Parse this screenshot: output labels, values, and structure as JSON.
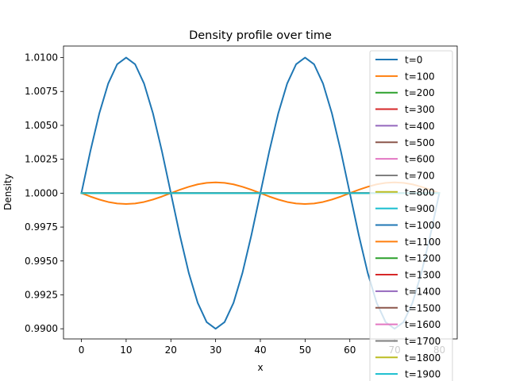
{
  "chart_data": {
    "type": "line",
    "title": "Density profile over time",
    "xlabel": "x",
    "ylabel": "Density",
    "xlim": [
      -4,
      84
    ],
    "ylim": [
      0.98925,
      1.01085
    ],
    "x_ticks": [
      0,
      10,
      20,
      30,
      40,
      50,
      60,
      70,
      80
    ],
    "x_tick_labels": [
      "0",
      "10",
      "20",
      "30",
      "40",
      "50",
      "60",
      "70",
      "80"
    ],
    "y_ticks": [
      0.99,
      0.9925,
      0.995,
      0.9975,
      1.0,
      1.0025,
      1.005,
      1.0075,
      1.01
    ],
    "y_tick_labels": [
      "0.9900",
      "0.9925",
      "0.9950",
      "0.9975",
      "1.0000",
      "1.0025",
      "1.0050",
      "1.0075",
      "1.0100"
    ],
    "x": [
      0,
      2,
      4,
      6,
      8,
      10,
      12,
      14,
      16,
      18,
      20,
      22,
      24,
      26,
      28,
      30,
      32,
      34,
      36,
      38,
      40,
      42,
      44,
      46,
      48,
      50,
      52,
      54,
      56,
      58,
      60,
      62,
      64,
      66,
      68,
      70,
      72,
      74,
      76,
      78,
      80
    ],
    "grid": false,
    "legend_position": "top-right",
    "series": [
      {
        "name": "t=0",
        "color": "#1f77b4",
        "values": [
          1.0,
          1.00309,
          1.00588,
          1.00809,
          1.00951,
          1.01,
          1.00951,
          1.00809,
          1.00588,
          1.00309,
          1.0,
          0.99691,
          0.99412,
          0.99191,
          0.99049,
          0.99,
          0.99049,
          0.99191,
          0.99412,
          0.99691,
          1.0,
          1.00309,
          1.00588,
          1.00809,
          1.00951,
          1.01,
          1.00951,
          1.00809,
          1.00588,
          1.00309,
          1.0,
          0.99691,
          0.99412,
          0.99191,
          0.99049,
          0.99,
          0.99049,
          0.99191,
          0.99412,
          0.99691,
          1.0
        ]
      },
      {
        "name": "t=100",
        "color": "#ff7f0e",
        "values": [
          1.0,
          0.99975,
          0.99953,
          0.99935,
          0.99924,
          0.9992,
          0.99924,
          0.99935,
          0.99953,
          0.99975,
          1.0,
          1.00025,
          1.00047,
          1.00065,
          1.00076,
          1.0008,
          1.00076,
          1.00065,
          1.00047,
          1.00025,
          1.0,
          0.99975,
          0.99953,
          0.99935,
          0.99924,
          0.9992,
          0.99924,
          0.99935,
          0.99953,
          0.99975,
          1.0,
          1.00025,
          1.00047,
          1.00065,
          1.00076,
          1.0008,
          1.00076,
          1.00065,
          1.00047,
          1.00025,
          1.0
        ]
      },
      {
        "name": "t=200",
        "color": "#2ca02c",
        "values": [
          1.0,
          1.0,
          1.0,
          1.00001,
          1.00001,
          1.00001,
          1.00001,
          1.00001,
          1.0,
          1.0,
          1.0,
          1.0,
          1.0,
          0.99999,
          0.99999,
          0.99999,
          0.99999,
          0.99999,
          1.0,
          1.0,
          1.0,
          1.0,
          1.0,
          1.00001,
          1.00001,
          1.00001,
          1.00001,
          1.00001,
          1.0,
          1.0,
          1.0,
          1.0,
          1.0,
          0.99999,
          0.99999,
          0.99999,
          0.99999,
          0.99999,
          1.0,
          1.0,
          1.0
        ]
      },
      {
        "name": "t=300",
        "color": "#d62728",
        "values": [
          1.0,
          1.0,
          1.0,
          1.0,
          1.0,
          1.0,
          1.0,
          1.0,
          1.0,
          1.0,
          1.0,
          1.0,
          1.0,
          1.0,
          1.0,
          1.0,
          1.0,
          1.0,
          1.0,
          1.0,
          1.0,
          1.0,
          1.0,
          1.0,
          1.0,
          1.0,
          1.0,
          1.0,
          1.0,
          1.0,
          1.0,
          1.0,
          1.0,
          1.0,
          1.0,
          1.0,
          1.0,
          1.0,
          1.0,
          1.0,
          1.0
        ]
      },
      {
        "name": "t=400",
        "color": "#9467bd",
        "values": [
          1.0,
          1.0,
          1.0,
          1.0,
          1.0,
          1.0,
          1.0,
          1.0,
          1.0,
          1.0,
          1.0,
          1.0,
          1.0,
          1.0,
          1.0,
          1.0,
          1.0,
          1.0,
          1.0,
          1.0,
          1.0,
          1.0,
          1.0,
          1.0,
          1.0,
          1.0,
          1.0,
          1.0,
          1.0,
          1.0,
          1.0,
          1.0,
          1.0,
          1.0,
          1.0,
          1.0,
          1.0,
          1.0,
          1.0,
          1.0,
          1.0
        ]
      },
      {
        "name": "t=500",
        "color": "#8c564b",
        "values": [
          1.0,
          1.0,
          1.0,
          1.0,
          1.0,
          1.0,
          1.0,
          1.0,
          1.0,
          1.0,
          1.0,
          1.0,
          1.0,
          1.0,
          1.0,
          1.0,
          1.0,
          1.0,
          1.0,
          1.0,
          1.0,
          1.0,
          1.0,
          1.0,
          1.0,
          1.0,
          1.0,
          1.0,
          1.0,
          1.0,
          1.0,
          1.0,
          1.0,
          1.0,
          1.0,
          1.0,
          1.0,
          1.0,
          1.0,
          1.0,
          1.0
        ]
      },
      {
        "name": "t=600",
        "color": "#e377c2",
        "values": [
          1.0,
          1.0,
          1.0,
          1.0,
          1.0,
          1.0,
          1.0,
          1.0,
          1.0,
          1.0,
          1.0,
          1.0,
          1.0,
          1.0,
          1.0,
          1.0,
          1.0,
          1.0,
          1.0,
          1.0,
          1.0,
          1.0,
          1.0,
          1.0,
          1.0,
          1.0,
          1.0,
          1.0,
          1.0,
          1.0,
          1.0,
          1.0,
          1.0,
          1.0,
          1.0,
          1.0,
          1.0,
          1.0,
          1.0,
          1.0,
          1.0
        ]
      },
      {
        "name": "t=700",
        "color": "#7f7f7f",
        "values": [
          1.0,
          1.0,
          1.0,
          1.0,
          1.0,
          1.0,
          1.0,
          1.0,
          1.0,
          1.0,
          1.0,
          1.0,
          1.0,
          1.0,
          1.0,
          1.0,
          1.0,
          1.0,
          1.0,
          1.0,
          1.0,
          1.0,
          1.0,
          1.0,
          1.0,
          1.0,
          1.0,
          1.0,
          1.0,
          1.0,
          1.0,
          1.0,
          1.0,
          1.0,
          1.0,
          1.0,
          1.0,
          1.0,
          1.0,
          1.0,
          1.0
        ]
      },
      {
        "name": "t=800",
        "color": "#bcbd22",
        "values": [
          1.0,
          1.0,
          1.0,
          1.0,
          1.0,
          1.0,
          1.0,
          1.0,
          1.0,
          1.0,
          1.0,
          1.0,
          1.0,
          1.0,
          1.0,
          1.0,
          1.0,
          1.0,
          1.0,
          1.0,
          1.0,
          1.0,
          1.0,
          1.0,
          1.0,
          1.0,
          1.0,
          1.0,
          1.0,
          1.0,
          1.0,
          1.0,
          1.0,
          1.0,
          1.0,
          1.0,
          1.0,
          1.0,
          1.0,
          1.0,
          1.0
        ]
      },
      {
        "name": "t=900",
        "color": "#17becf",
        "values": [
          1.0,
          1.0,
          1.0,
          1.0,
          1.0,
          1.0,
          1.0,
          1.0,
          1.0,
          1.0,
          1.0,
          1.0,
          1.0,
          1.0,
          1.0,
          1.0,
          1.0,
          1.0,
          1.0,
          1.0,
          1.0,
          1.0,
          1.0,
          1.0,
          1.0,
          1.0,
          1.0,
          1.0,
          1.0,
          1.0,
          1.0,
          1.0,
          1.0,
          1.0,
          1.0,
          1.0,
          1.0,
          1.0,
          1.0,
          1.0,
          1.0
        ]
      },
      {
        "name": "t=1000",
        "color": "#1f77b4",
        "values": [
          1.0,
          1.0,
          1.0,
          1.0,
          1.0,
          1.0,
          1.0,
          1.0,
          1.0,
          1.0,
          1.0,
          1.0,
          1.0,
          1.0,
          1.0,
          1.0,
          1.0,
          1.0,
          1.0,
          1.0,
          1.0,
          1.0,
          1.0,
          1.0,
          1.0,
          1.0,
          1.0,
          1.0,
          1.0,
          1.0,
          1.0,
          1.0,
          1.0,
          1.0,
          1.0,
          1.0,
          1.0,
          1.0,
          1.0,
          1.0,
          1.0
        ]
      },
      {
        "name": "t=1100",
        "color": "#ff7f0e",
        "values": [
          1.0,
          1.0,
          1.0,
          1.0,
          1.0,
          1.0,
          1.0,
          1.0,
          1.0,
          1.0,
          1.0,
          1.0,
          1.0,
          1.0,
          1.0,
          1.0,
          1.0,
          1.0,
          1.0,
          1.0,
          1.0,
          1.0,
          1.0,
          1.0,
          1.0,
          1.0,
          1.0,
          1.0,
          1.0,
          1.0,
          1.0,
          1.0,
          1.0,
          1.0,
          1.0,
          1.0,
          1.0,
          1.0,
          1.0,
          1.0,
          1.0
        ]
      },
      {
        "name": "t=1200",
        "color": "#2ca02c",
        "values": [
          1.0,
          1.0,
          1.0,
          1.0,
          1.0,
          1.0,
          1.0,
          1.0,
          1.0,
          1.0,
          1.0,
          1.0,
          1.0,
          1.0,
          1.0,
          1.0,
          1.0,
          1.0,
          1.0,
          1.0,
          1.0,
          1.0,
          1.0,
          1.0,
          1.0,
          1.0,
          1.0,
          1.0,
          1.0,
          1.0,
          1.0,
          1.0,
          1.0,
          1.0,
          1.0,
          1.0,
          1.0,
          1.0,
          1.0,
          1.0,
          1.0
        ]
      },
      {
        "name": "t=1300",
        "color": "#d62728",
        "values": [
          1.0,
          1.0,
          1.0,
          1.0,
          1.0,
          1.0,
          1.0,
          1.0,
          1.0,
          1.0,
          1.0,
          1.0,
          1.0,
          1.0,
          1.0,
          1.0,
          1.0,
          1.0,
          1.0,
          1.0,
          1.0,
          1.0,
          1.0,
          1.0,
          1.0,
          1.0,
          1.0,
          1.0,
          1.0,
          1.0,
          1.0,
          1.0,
          1.0,
          1.0,
          1.0,
          1.0,
          1.0,
          1.0,
          1.0,
          1.0,
          1.0
        ]
      },
      {
        "name": "t=1400",
        "color": "#9467bd",
        "values": [
          1.0,
          1.0,
          1.0,
          1.0,
          1.0,
          1.0,
          1.0,
          1.0,
          1.0,
          1.0,
          1.0,
          1.0,
          1.0,
          1.0,
          1.0,
          1.0,
          1.0,
          1.0,
          1.0,
          1.0,
          1.0,
          1.0,
          1.0,
          1.0,
          1.0,
          1.0,
          1.0,
          1.0,
          1.0,
          1.0,
          1.0,
          1.0,
          1.0,
          1.0,
          1.0,
          1.0,
          1.0,
          1.0,
          1.0,
          1.0,
          1.0
        ]
      },
      {
        "name": "t=1500",
        "color": "#8c564b",
        "values": [
          1.0,
          1.0,
          1.0,
          1.0,
          1.0,
          1.0,
          1.0,
          1.0,
          1.0,
          1.0,
          1.0,
          1.0,
          1.0,
          1.0,
          1.0,
          1.0,
          1.0,
          1.0,
          1.0,
          1.0,
          1.0,
          1.0,
          1.0,
          1.0,
          1.0,
          1.0,
          1.0,
          1.0,
          1.0,
          1.0,
          1.0,
          1.0,
          1.0,
          1.0,
          1.0,
          1.0,
          1.0,
          1.0,
          1.0,
          1.0,
          1.0
        ]
      },
      {
        "name": "t=1600",
        "color": "#e377c2",
        "values": [
          1.0,
          1.0,
          1.0,
          1.0,
          1.0,
          1.0,
          1.0,
          1.0,
          1.0,
          1.0,
          1.0,
          1.0,
          1.0,
          1.0,
          1.0,
          1.0,
          1.0,
          1.0,
          1.0,
          1.0,
          1.0,
          1.0,
          1.0,
          1.0,
          1.0,
          1.0,
          1.0,
          1.0,
          1.0,
          1.0,
          1.0,
          1.0,
          1.0,
          1.0,
          1.0,
          1.0,
          1.0,
          1.0,
          1.0,
          1.0,
          1.0
        ]
      },
      {
        "name": "t=1700",
        "color": "#7f7f7f",
        "values": [
          1.0,
          1.0,
          1.0,
          1.0,
          1.0,
          1.0,
          1.0,
          1.0,
          1.0,
          1.0,
          1.0,
          1.0,
          1.0,
          1.0,
          1.0,
          1.0,
          1.0,
          1.0,
          1.0,
          1.0,
          1.0,
          1.0,
          1.0,
          1.0,
          1.0,
          1.0,
          1.0,
          1.0,
          1.0,
          1.0,
          1.0,
          1.0,
          1.0,
          1.0,
          1.0,
          1.0,
          1.0,
          1.0,
          1.0,
          1.0,
          1.0
        ]
      },
      {
        "name": "t=1800",
        "color": "#bcbd22",
        "values": [
          1.0,
          1.0,
          1.0,
          1.0,
          1.0,
          1.0,
          1.0,
          1.0,
          1.0,
          1.0,
          1.0,
          1.0,
          1.0,
          1.0,
          1.0,
          1.0,
          1.0,
          1.0,
          1.0,
          1.0,
          1.0,
          1.0,
          1.0,
          1.0,
          1.0,
          1.0,
          1.0,
          1.0,
          1.0,
          1.0,
          1.0,
          1.0,
          1.0,
          1.0,
          1.0,
          1.0,
          1.0,
          1.0,
          1.0,
          1.0,
          1.0
        ]
      },
      {
        "name": "t=1900",
        "color": "#17becf",
        "values": [
          1.0,
          1.0,
          1.0,
          1.0,
          1.0,
          1.0,
          1.0,
          1.0,
          1.0,
          1.0,
          1.0,
          1.0,
          1.0,
          1.0,
          1.0,
          1.0,
          1.0,
          1.0,
          1.0,
          1.0,
          1.0,
          1.0,
          1.0,
          1.0,
          1.0,
          1.0,
          1.0,
          1.0,
          1.0,
          1.0,
          1.0,
          1.0,
          1.0,
          1.0,
          1.0,
          1.0,
          1.0,
          1.0,
          1.0,
          1.0,
          1.0
        ]
      }
    ]
  }
}
